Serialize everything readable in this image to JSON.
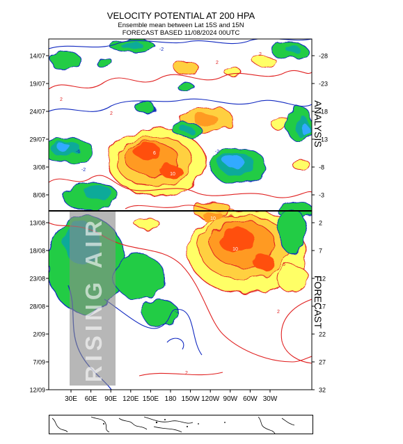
{
  "header": {
    "title": "VELOCITY POTENTIAL AT 200 HPA",
    "subtitle": "Ensemble mean between  Lat 15S and 15N",
    "forecast_line": "FORECAST  BASED 11/08/2024 00UTC"
  },
  "chart_data": {
    "type": "heatmap",
    "title": "VELOCITY POTENTIAL AT 200 HPA",
    "subtitle": "Ensemble mean between  Lat 15S and 15N",
    "x_tick_labels": [
      "30E",
      "60E",
      "90E",
      "120E",
      "150E",
      "180",
      "150W",
      "120W",
      "90W",
      "60W",
      "30W"
    ],
    "y_tick_labels_left": [
      "14/07",
      "19/07",
      "24/07",
      "29/07",
      "3/08",
      "8/08",
      "13/08",
      "18/08",
      "23/08",
      "28/08",
      "2/09",
      "7/09",
      "12/09"
    ],
    "y_tick_labels_right": [
      "-28",
      "-23",
      "-18",
      "-13",
      "-8",
      "-3",
      "2",
      "7",
      "12",
      "17",
      "22",
      "27",
      "32"
    ],
    "analysis_label": "ANALYSIS",
    "forecast_label": "FORECAST",
    "divider_date": "11/08",
    "watermark": "RISING AIR",
    "contour_labels": [
      "-2",
      "2",
      "-6",
      "6",
      "10"
    ],
    "colors": {
      "positive_fill": [
        "#ffff66",
        "#ffd040",
        "#ff9a20",
        "#ff5010"
      ],
      "negative_fill": [
        "#22cc44",
        "#11aa99",
        "#33aaff",
        "#1166ff"
      ],
      "positive_contour": "#e02020",
      "negative_contour": "#1028c0"
    }
  }
}
